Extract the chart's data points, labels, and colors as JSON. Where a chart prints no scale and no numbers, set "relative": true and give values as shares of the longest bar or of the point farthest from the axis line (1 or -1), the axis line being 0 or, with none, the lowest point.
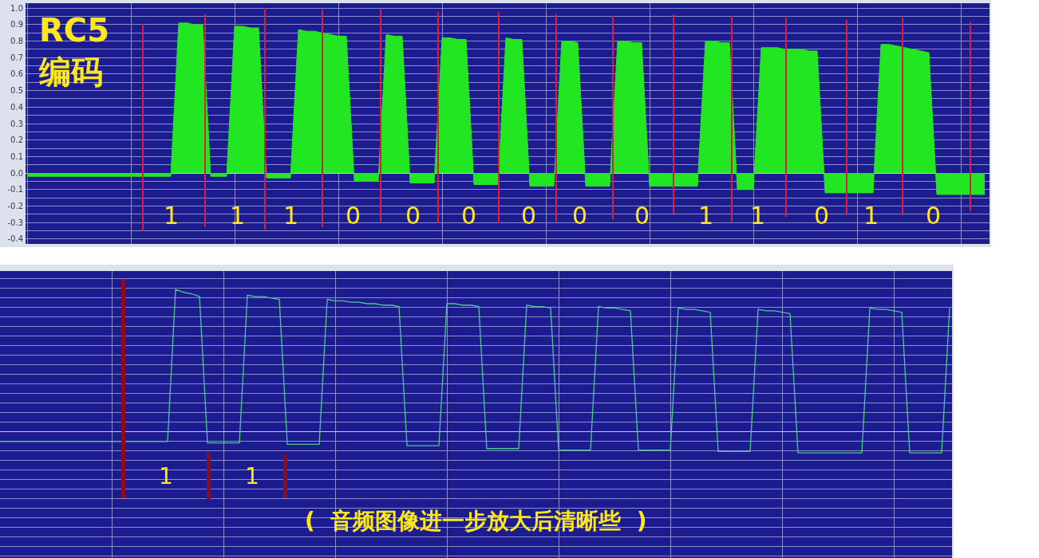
{
  "chart_data": [
    {
      "type": "area",
      "relative": false,
      "tick_labels": "y",
      "grid": true,
      "categories": [
        null,
        null,
        null,
        null,
        null,
        null,
        null,
        null,
        null,
        null,
        null,
        null,
        null,
        null,
        null,
        null,
        null,
        null,
        null,
        null,
        null,
        null,
        null,
        null,
        null,
        null,
        null,
        null,
        null,
        null,
        null,
        null,
        null,
        null,
        null,
        null,
        null,
        null,
        null,
        null,
        null,
        null,
        null,
        null,
        null,
        null,
        null,
        null,
        null,
        null,
        null,
        null,
        null,
        null,
        null,
        null,
        null,
        null,
        null,
        null,
        null,
        null,
        null,
        null,
        null,
        null,
        null,
        null,
        null,
        null,
        null,
        null,
        null,
        null,
        null,
        null,
        null,
        null,
        null,
        null,
        null,
        null,
        null,
        null,
        null,
        null,
        null,
        null,
        null,
        null,
        null,
        null,
        null,
        null,
        null,
        null,
        null,
        null,
        null,
        null,
        null,
        null,
        null,
        null,
        null,
        null,
        null,
        null,
        null,
        null,
        null,
        null,
        null,
        null,
        null,
        null,
        null,
        null,
        null,
        null,
        null
      ],
      "series": [
        {
          "color": "#22e622",
          "values": [
            -0.02,
            -0.02,
            -0.02,
            -0.02,
            -0.02,
            -0.02,
            -0.02,
            -0.02,
            -0.02,
            -0.02,
            -0.02,
            -0.02,
            -0.02,
            -0.02,
            -0.02,
            -0.02,
            -0.02,
            -0.02,
            -0.02,
            0.91,
            0.91,
            0.9,
            0.9,
            -0.02,
            -0.02,
            -0.02,
            0.89,
            0.89,
            0.88,
            0.88,
            -0.03,
            -0.03,
            -0.03,
            -0.03,
            0.87,
            0.86,
            0.86,
            0.85,
            0.84,
            0.83,
            0.83,
            -0.05,
            -0.05,
            -0.05,
            -0.05,
            0.84,
            0.83,
            0.83,
            -0.06,
            -0.06,
            -0.06,
            -0.06,
            0.82,
            0.82,
            0.81,
            0.81,
            -0.07,
            -0.07,
            -0.07,
            -0.07,
            0.82,
            0.81,
            0.81,
            -0.08,
            -0.08,
            -0.08,
            -0.08,
            0.8,
            0.8,
            0.79,
            -0.08,
            -0.08,
            -0.08,
            -0.08,
            0.8,
            0.8,
            0.79,
            0.79,
            -0.08,
            -0.08,
            -0.08,
            -0.08,
            -0.08,
            -0.08,
            -0.08,
            0.8,
            0.8,
            0.79,
            0.79,
            -0.1,
            -0.1,
            -0.1,
            0.76,
            0.76,
            0.76,
            0.75,
            0.75,
            0.75,
            0.74,
            0.74,
            -0.12,
            -0.12,
            -0.12,
            -0.12,
            -0.12,
            -0.12,
            -0.12,
            0.78,
            0.78,
            0.77,
            0.76,
            0.75,
            0.74,
            0.73,
            -0.13,
            -0.13,
            -0.13,
            -0.13,
            -0.13,
            -0.13,
            -0.13
          ]
        }
      ],
      "ylim": [
        -0.43,
        1.03
      ],
      "yticks": [
        -0.4,
        -0.3,
        -0.2,
        -0.1,
        {
          "value": 0,
          "label": "0.0"
        },
        0.1,
        0.2,
        0.3,
        0.4,
        0.5,
        0.6,
        0.7,
        0.8,
        0.9,
        {
          "value": 1,
          "label": "1.0"
        }
      ],
      "annotations": [
        "1",
        "1",
        "1",
        "0",
        "0",
        "0",
        "0",
        "0",
        "0",
        "1",
        "1",
        "0",
        "1",
        "0",
        "RC5\n编码"
      ]
    },
    {
      "type": "line",
      "relative": true,
      "tick_labels": false,
      "grid": true,
      "categories": [
        null,
        null,
        null,
        null,
        null,
        null,
        null,
        null,
        null,
        null,
        null,
        null,
        null,
        null,
        null,
        null,
        null,
        null,
        null,
        null,
        null,
        null,
        null,
        null,
        null,
        null,
        null,
        null,
        null,
        null,
        null,
        null,
        null,
        null,
        null,
        null,
        null,
        null,
        null,
        null,
        null,
        null,
        null,
        null,
        null,
        null,
        null,
        null,
        null,
        null,
        null,
        null,
        null,
        null,
        null,
        null,
        null,
        null,
        null,
        null,
        null,
        null,
        null,
        null,
        null,
        null,
        null,
        null,
        null,
        null,
        null,
        null,
        null,
        null,
        null,
        null,
        null,
        null,
        null,
        null,
        null,
        null,
        null,
        null,
        null,
        null,
        null,
        null,
        null,
        null,
        null,
        null,
        null,
        null,
        null,
        null,
        null,
        null,
        null,
        null,
        null,
        null,
        null,
        null,
        null,
        null,
        null,
        null,
        null,
        null,
        null,
        null,
        null,
        null,
        null,
        null,
        null,
        null,
        null,
        null
      ],
      "series": [
        {
          "color": "#4cc88e",
          "values": [
            -0.07,
            -0.07,
            -0.07,
            -0.07,
            -0.07,
            -0.07,
            -0.07,
            -0.07,
            -0.07,
            -0.07,
            -0.07,
            -0.07,
            -0.07,
            -0.07,
            -0.07,
            -0.07,
            -0.07,
            -0.07,
            -0.07,
            -0.07,
            -0.07,
            -0.07,
            1,
            0.98,
            0.97,
            0.95,
            -0.08,
            -0.08,
            -0.08,
            -0.08,
            -0.08,
            0.96,
            0.95,
            0.95,
            0.94,
            0.93,
            -0.09,
            -0.09,
            -0.09,
            -0.09,
            -0.09,
            0.93,
            0.92,
            0.92,
            0.91,
            0.91,
            0.9,
            0.9,
            0.89,
            0.89,
            0.88,
            -0.1,
            -0.1,
            -0.1,
            -0.1,
            -0.1,
            0.9,
            0.9,
            0.89,
            0.89,
            0.88,
            -0.12,
            -0.12,
            -0.12,
            -0.12,
            -0.12,
            0.89,
            0.88,
            0.88,
            0.87,
            -0.13,
            -0.13,
            -0.13,
            -0.13,
            -0.13,
            0.88,
            0.87,
            0.87,
            0.86,
            0.85,
            -0.13,
            -0.13,
            -0.13,
            -0.13,
            -0.13,
            0.87,
            0.86,
            0.86,
            0.85,
            0.84,
            -0.14,
            -0.14,
            -0.14,
            -0.14,
            -0.14,
            0.86,
            0.85,
            0.85,
            0.84,
            0.83,
            -0.15,
            -0.15,
            -0.15,
            -0.15,
            -0.15,
            -0.15,
            -0.15,
            -0.15,
            -0.15,
            0.87,
            0.86,
            0.86,
            0.85,
            0.84,
            -0.15,
            -0.15,
            -0.15,
            -0.15,
            -0.15,
            0.87
          ]
        }
      ],
      "annotations": [
        "1",
        "1",
        "(  音频图像进一步放大后清晰些  )"
      ]
    }
  ]
}
